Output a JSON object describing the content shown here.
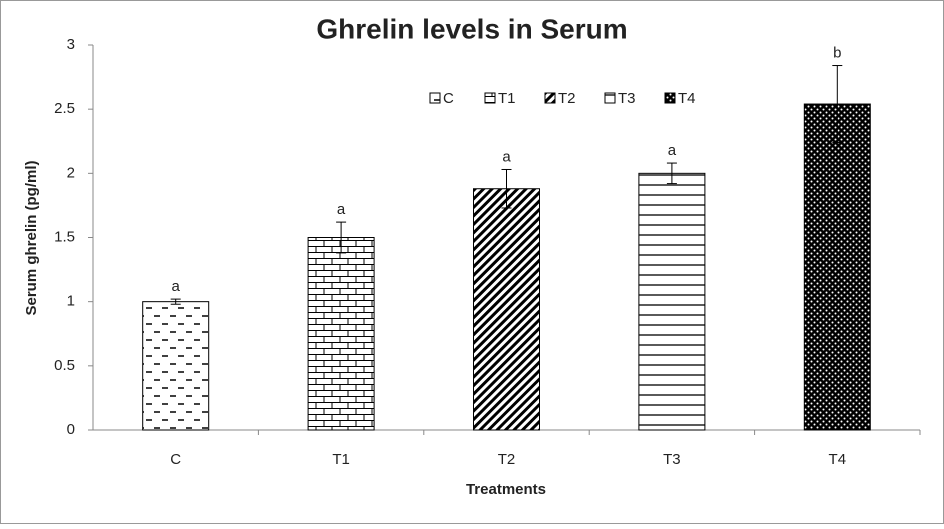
{
  "chart_data": {
    "type": "bar",
    "title": "Ghrelin levels in Serum",
    "y_label": "Serum ghrelin (pg/ml)",
    "x_label": "Treatments",
    "categories": [
      "C",
      "T1",
      "T2",
      "T3",
      "T4"
    ],
    "values": [
      1.0,
      1.5,
      1.88,
      2.0,
      2.54
    ],
    "errors": [
      0.02,
      0.12,
      0.15,
      0.08,
      0.3
    ],
    "annotations": [
      "a",
      "a",
      "a",
      "a",
      "b"
    ],
    "color": "#000000",
    "ylim": [
      0,
      3
    ],
    "yticks": [
      0,
      0.5,
      1,
      1.5,
      2,
      2.5,
      3
    ],
    "grid": false,
    "legend": "top"
  }
}
